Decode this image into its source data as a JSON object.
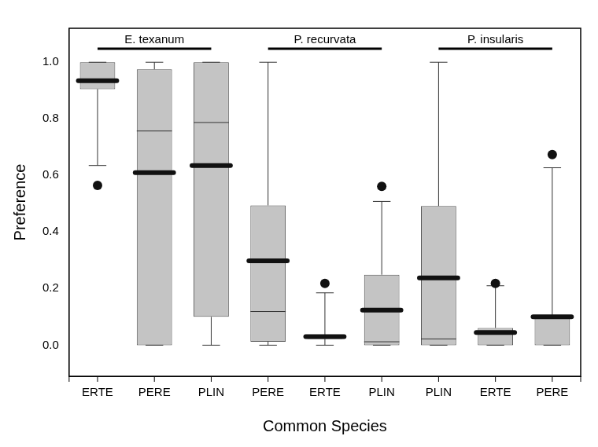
{
  "chart_data": {
    "type": "boxplot",
    "x_label": "Common Species",
    "y_label": "Preference",
    "categories": [
      "ERTE",
      "PERE",
      "PLIN",
      "PERE",
      "ERTE",
      "PLIN",
      "PLIN",
      "ERTE",
      "PERE"
    ],
    "groups": [
      {
        "label": "E. texanum",
        "start": 0,
        "end": 2
      },
      {
        "label": "P. recurvata",
        "start": 3,
        "end": 5
      },
      {
        "label": "P. insularis",
        "start": 6,
        "end": 8
      }
    ],
    "boxes": [
      {
        "whisker_low": 0.635,
        "q1": 0.905,
        "median": 0.93,
        "q3": 1.0,
        "whisker_high": 1.0,
        "mean": 0.935,
        "outliers": [
          0.565
        ]
      },
      {
        "whisker_low": 0.0,
        "q1": 0.0,
        "median": 0.757,
        "q3": 0.975,
        "whisker_high": 1.0,
        "mean": 0.61,
        "outliers": []
      },
      {
        "whisker_low": 0.0,
        "q1": 0.1,
        "median": 0.787,
        "q3": 1.0,
        "whisker_high": 1.0,
        "mean": 0.635,
        "outliers": []
      },
      {
        "whisker_low": 0.0,
        "q1": 0.012,
        "median": 0.119,
        "q3": 0.494,
        "whisker_high": 1.0,
        "mean": 0.298,
        "outliers": []
      },
      {
        "whisker_low": 0.0,
        "q1": 0.022,
        "median": 0.028,
        "q3": 0.035,
        "whisker_high": 0.185,
        "mean": 0.03,
        "outliers": [
          0.218
        ]
      },
      {
        "whisker_low": 0.0,
        "q1": 0.0,
        "median": 0.012,
        "q3": 0.249,
        "whisker_high": 0.508,
        "mean": 0.124,
        "outliers": [
          0.561
        ]
      },
      {
        "whisker_low": 0.0,
        "q1": 0.0,
        "median": 0.022,
        "q3": 0.492,
        "whisker_high": 1.0,
        "mean": 0.238,
        "outliers": []
      },
      {
        "whisker_low": 0.0,
        "q1": 0.0,
        "median": 0.04,
        "q3": 0.061,
        "whisker_high": 0.21,
        "mean": 0.045,
        "outliers": [
          0.218
        ]
      },
      {
        "whisker_low": 0.0,
        "q1": 0.0,
        "median": 0.1,
        "q3": 0.1,
        "whisker_high": 0.627,
        "mean": 0.1,
        "outliers": [
          0.674
        ]
      }
    ],
    "color": "#c4c4c4",
    "ylim": [
      -0.11,
      1.12
    ],
    "yticks": [
      {
        "value": 0,
        "label": "0.0"
      },
      {
        "value": 0.2,
        "label": "0.2"
      },
      {
        "value": 0.4,
        "label": "0.4"
      },
      {
        "value": 0.6,
        "label": "0.6"
      },
      {
        "value": 0.8,
        "label": "0.8"
      },
      {
        "value": 1.0,
        "label": "1.0"
      }
    ],
    "grid": false
  }
}
